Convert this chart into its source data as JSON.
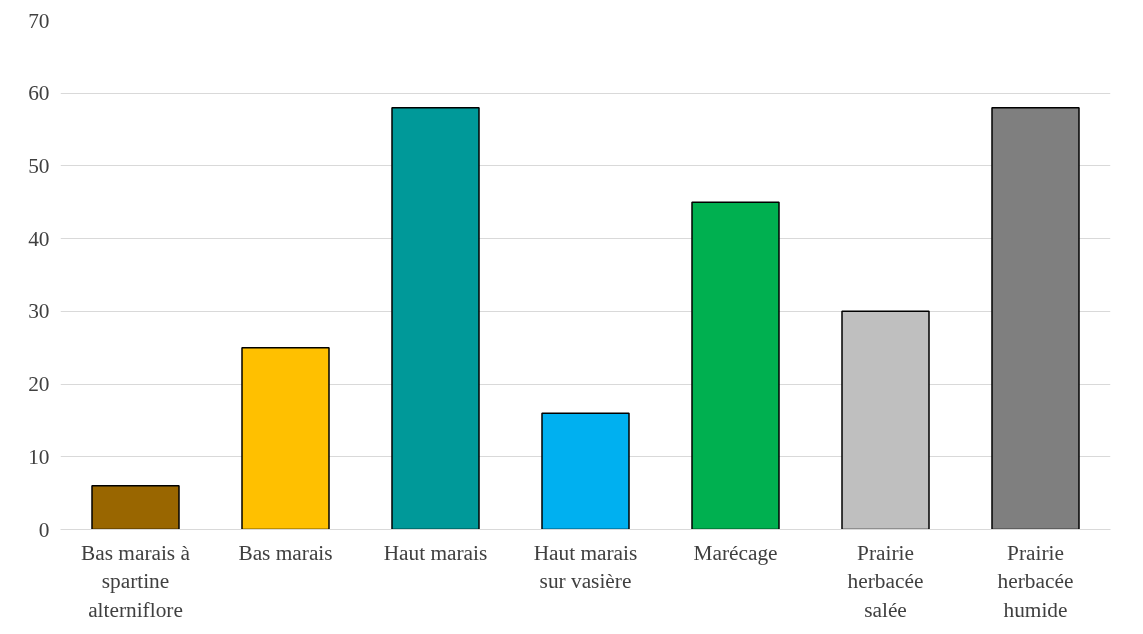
{
  "chart_data": {
    "type": "bar",
    "categories": [
      "Bas marais à spartine alterniflore",
      "Bas marais",
      "Haut marais",
      "Haut marais sur vasière",
      "Marécage",
      "Prairie herbacée salée",
      "Prairie herbacée humide"
    ],
    "values": [
      6,
      25,
      58,
      16,
      45,
      30,
      58
    ],
    "colors": [
      "#996600",
      "#ffc000",
      "#009999",
      "#00b0f0",
      "#00b050",
      "#bfbfbf",
      "#7f7f7f"
    ],
    "ylim": [
      0,
      70
    ],
    "yticks": [
      0,
      10,
      20,
      30,
      40,
      50,
      60,
      70
    ],
    "grid": "y"
  }
}
